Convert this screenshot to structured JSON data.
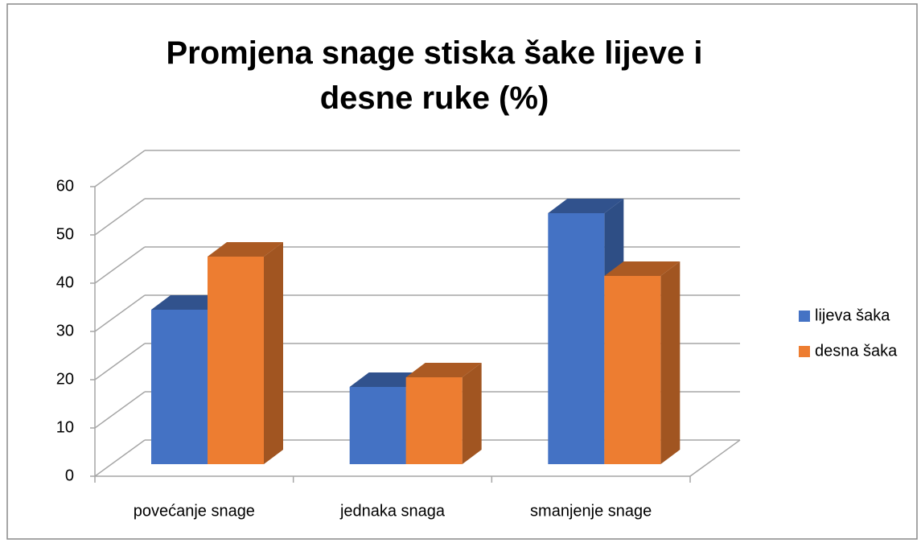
{
  "chart_data": {
    "type": "bar3d",
    "title": "Promjena snage stiska šake lijeve i desne ruke (%)",
    "categories": [
      "povećanje snage",
      "jednaka snaga",
      "smanjenje snage"
    ],
    "series": [
      {
        "name": "lijeva šaka",
        "color": "#4472c4",
        "values": [
          32,
          16,
          52
        ]
      },
      {
        "name": "desna šaka",
        "color": "#ed7d31",
        "values": [
          43,
          18,
          39
        ]
      }
    ],
    "ylim": [
      0,
      60
    ],
    "yticks": [
      0,
      10,
      20,
      30,
      40,
      50,
      60
    ],
    "grid": true,
    "legend": "right"
  }
}
